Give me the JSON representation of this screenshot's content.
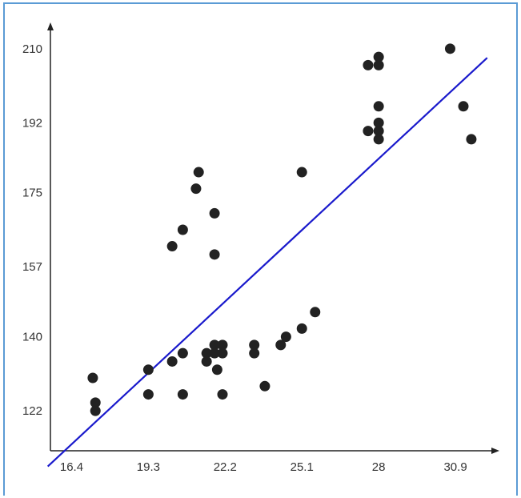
{
  "chart_data": {
    "type": "scatter",
    "title": "",
    "xlabel": "",
    "ylabel": "",
    "xlim": [
      15.6,
      32.5
    ],
    "ylim": [
      112.3,
      216.0
    ],
    "x_ticks": [
      "16.4",
      "19.3",
      "22.2",
      "25.1",
      "28",
      "30.9"
    ],
    "y_ticks": [
      "122",
      "140",
      "157",
      "175",
      "192",
      "210"
    ],
    "grid": false,
    "point_color": "#222222",
    "line_color": "#1a1acc",
    "axis_color": "#222222",
    "points": [
      {
        "x": 17.2,
        "y": 130
      },
      {
        "x": 17.3,
        "y": 124
      },
      {
        "x": 17.3,
        "y": 122
      },
      {
        "x": 19.3,
        "y": 132
      },
      {
        "x": 19.3,
        "y": 126
      },
      {
        "x": 20.2,
        "y": 162
      },
      {
        "x": 20.2,
        "y": 134
      },
      {
        "x": 20.6,
        "y": 166
      },
      {
        "x": 20.6,
        "y": 136
      },
      {
        "x": 20.6,
        "y": 126
      },
      {
        "x": 21.1,
        "y": 176
      },
      {
        "x": 21.2,
        "y": 180
      },
      {
        "x": 21.5,
        "y": 136
      },
      {
        "x": 21.5,
        "y": 134
      },
      {
        "x": 21.8,
        "y": 170
      },
      {
        "x": 21.8,
        "y": 160
      },
      {
        "x": 21.8,
        "y": 138
      },
      {
        "x": 21.8,
        "y": 136
      },
      {
        "x": 21.9,
        "y": 132
      },
      {
        "x": 22.1,
        "y": 138
      },
      {
        "x": 22.1,
        "y": 136
      },
      {
        "x": 22.1,
        "y": 126
      },
      {
        "x": 23.3,
        "y": 138
      },
      {
        "x": 23.3,
        "y": 136
      },
      {
        "x": 23.7,
        "y": 128
      },
      {
        "x": 24.3,
        "y": 138
      },
      {
        "x": 24.5,
        "y": 140
      },
      {
        "x": 25.1,
        "y": 180
      },
      {
        "x": 25.1,
        "y": 142
      },
      {
        "x": 25.6,
        "y": 146
      },
      {
        "x": 27.6,
        "y": 206
      },
      {
        "x": 27.6,
        "y": 190
      },
      {
        "x": 28.0,
        "y": 208
      },
      {
        "x": 28.0,
        "y": 206
      },
      {
        "x": 28.0,
        "y": 196
      },
      {
        "x": 28.0,
        "y": 192
      },
      {
        "x": 28.0,
        "y": 190
      },
      {
        "x": 28.0,
        "y": 188
      },
      {
        "x": 30.7,
        "y": 210
      },
      {
        "x": 31.2,
        "y": 196
      },
      {
        "x": 31.5,
        "y": 188
      }
    ],
    "trendline": {
      "x1": 15.5,
      "y1": 108.5,
      "x2": 32.1,
      "y2": 207.8
    }
  }
}
